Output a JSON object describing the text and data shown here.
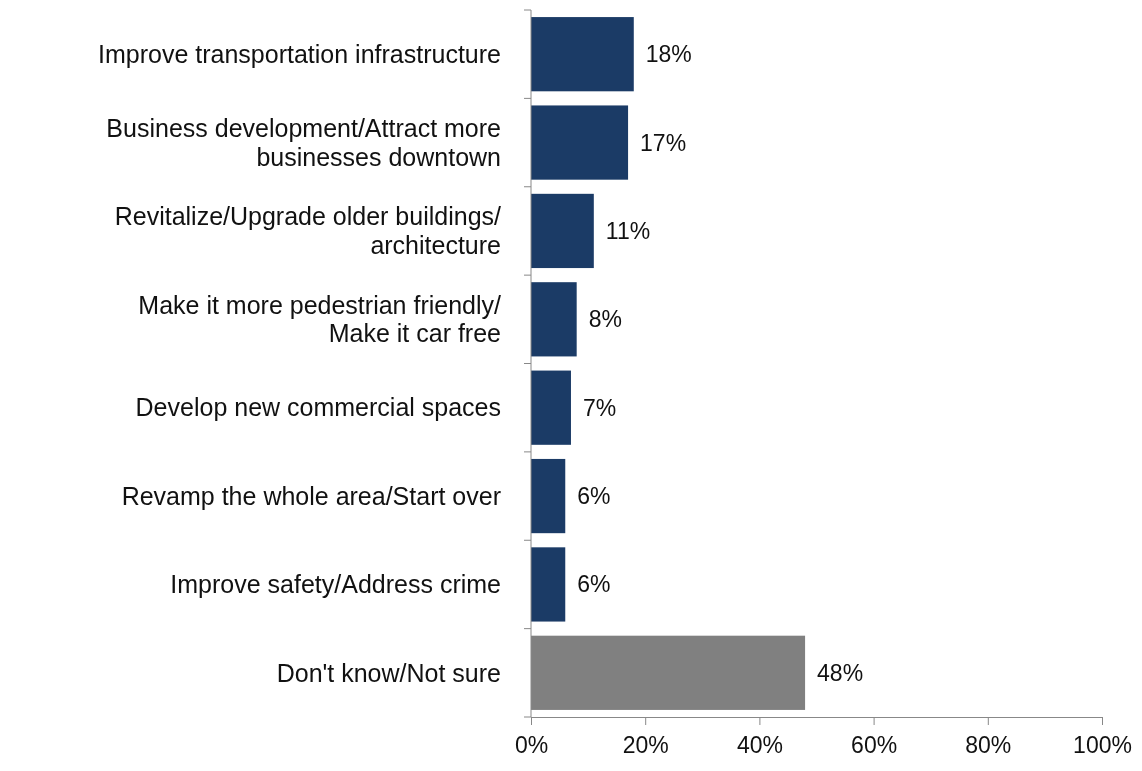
{
  "chart_data": {
    "type": "bar",
    "orientation": "horizontal",
    "categories": [
      "Improve transportation infrastructure",
      "Business development/Attract more businesses downtown",
      "Revitalize/Upgrade older buildings/ architecture",
      "Make it more pedestrian friendly/ Make it car free",
      "Develop new commercial spaces",
      "Revamp the whole area/Start over",
      "Improve safety/Address crime",
      "Don't know/Not sure"
    ],
    "values": [
      18,
      17,
      11,
      8,
      7,
      6,
      6,
      48
    ],
    "colors": [
      "#1b3b66",
      "#1b3b66",
      "#1b3b66",
      "#1b3b66",
      "#1b3b66",
      "#1b3b66",
      "#1b3b66",
      "#808080"
    ],
    "value_labels": [
      "18%",
      "17%",
      "11%",
      "8%",
      "7%",
      "6%",
      "6%",
      "48%"
    ],
    "xlim": [
      0,
      100
    ],
    "xticks": [
      {
        "value": 0,
        "label": "0%"
      },
      {
        "value": 20,
        "label": "20%"
      },
      {
        "value": 40,
        "label": "40%"
      },
      {
        "value": 60,
        "label": "60%"
      },
      {
        "value": 80,
        "label": "80%"
      },
      {
        "value": 100,
        "label": "100%"
      }
    ],
    "grid": false
  }
}
